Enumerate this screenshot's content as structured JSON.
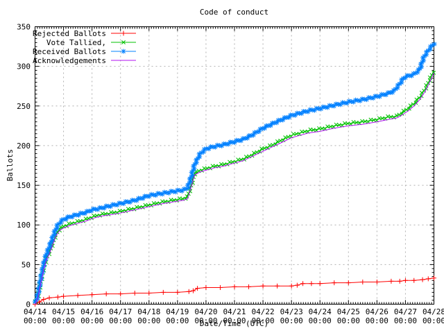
{
  "chart_data": {
    "type": "line",
    "title": "Code of conduct",
    "xlabel": "Date/Time (UTC)",
    "ylabel": "Ballots",
    "ylim": [
      0,
      350
    ],
    "ytick_step": 50,
    "ytick_minor_step": 5,
    "x_minor_ticks_per_day": 12,
    "x_days": 14,
    "x_tick_dates": [
      "04/14",
      "04/15",
      "04/16",
      "04/17",
      "04/18",
      "04/19",
      "04/20",
      "04/21",
      "04/22",
      "04/23",
      "04/24",
      "04/25",
      "04/26",
      "04/27",
      "04/28"
    ],
    "x_tick_time": "00:00",
    "grid": true,
    "legend_position": "top-left-inside",
    "colors": {
      "background": "#ffffff",
      "axis": "#000000",
      "grid": "#b0b0b0",
      "text": "#000000"
    },
    "series": [
      {
        "name": "Rejected Ballots",
        "color": "#ff0000",
        "marker": "plus",
        "points": [
          [
            0,
            0
          ],
          [
            0.15,
            3
          ],
          [
            0.3,
            6
          ],
          [
            0.5,
            8
          ],
          [
            0.8,
            9
          ],
          [
            1,
            10
          ],
          [
            1.5,
            11
          ],
          [
            2,
            12
          ],
          [
            2.5,
            13
          ],
          [
            3,
            13
          ],
          [
            3.5,
            14
          ],
          [
            4,
            14
          ],
          [
            4.5,
            15
          ],
          [
            5,
            15
          ],
          [
            5.4,
            16
          ],
          [
            5.55,
            17
          ],
          [
            5.7,
            20
          ],
          [
            6,
            21
          ],
          [
            6.5,
            21
          ],
          [
            7,
            22
          ],
          [
            7.5,
            22
          ],
          [
            8,
            23
          ],
          [
            8.5,
            23
          ],
          [
            9,
            23
          ],
          [
            9.2,
            24
          ],
          [
            9.4,
            26
          ],
          [
            9.7,
            26
          ],
          [
            10,
            26
          ],
          [
            10.5,
            27
          ],
          [
            11,
            27
          ],
          [
            11.5,
            28
          ],
          [
            12,
            28
          ],
          [
            12.5,
            29
          ],
          [
            12.8,
            29
          ],
          [
            13,
            30
          ],
          [
            13.3,
            30
          ],
          [
            13.6,
            31
          ],
          [
            13.8,
            32
          ],
          [
            14,
            33
          ]
        ]
      },
      {
        "name": "Vote Tallied,",
        "color": "#00c000",
        "marker": "cross",
        "points": [
          [
            0,
            0
          ],
          [
            0.1,
            10
          ],
          [
            0.2,
            28
          ],
          [
            0.3,
            45
          ],
          [
            0.4,
            58
          ],
          [
            0.5,
            65
          ],
          [
            0.6,
            75
          ],
          [
            0.7,
            85
          ],
          [
            0.8,
            92
          ],
          [
            0.9,
            96
          ],
          [
            1,
            98
          ],
          [
            1.2,
            101
          ],
          [
            1.5,
            104
          ],
          [
            1.8,
            107
          ],
          [
            2,
            110
          ],
          [
            2.3,
            113
          ],
          [
            2.5,
            114
          ],
          [
            3,
            117
          ],
          [
            3.5,
            121
          ],
          [
            4,
            125
          ],
          [
            4.5,
            129
          ],
          [
            5,
            132
          ],
          [
            5.2,
            133
          ],
          [
            5.35,
            135
          ],
          [
            5.5,
            152
          ],
          [
            5.6,
            165
          ],
          [
            5.8,
            169
          ],
          [
            6,
            171
          ],
          [
            6.3,
            174
          ],
          [
            6.6,
            176
          ],
          [
            7,
            180
          ],
          [
            7.3,
            183
          ],
          [
            7.6,
            188
          ],
          [
            8,
            196
          ],
          [
            8.3,
            200
          ],
          [
            8.6,
            206
          ],
          [
            9,
            213
          ],
          [
            9.3,
            216
          ],
          [
            9.6,
            219
          ],
          [
            10,
            221
          ],
          [
            10.5,
            225
          ],
          [
            11,
            228
          ],
          [
            11.5,
            230
          ],
          [
            12,
            233
          ],
          [
            12.4,
            236
          ],
          [
            12.7,
            237
          ],
          [
            12.9,
            242
          ],
          [
            13.1,
            247
          ],
          [
            13.3,
            253
          ],
          [
            13.5,
            261
          ],
          [
            13.7,
            272
          ],
          [
            13.85,
            283
          ],
          [
            14,
            295
          ]
        ]
      },
      {
        "name": "Received Ballots",
        "color": "#0080ff",
        "marker": "asterisk",
        "points": [
          [
            0,
            0
          ],
          [
            0.1,
            12
          ],
          [
            0.2,
            32
          ],
          [
            0.3,
            50
          ],
          [
            0.4,
            63
          ],
          [
            0.5,
            72
          ],
          [
            0.6,
            82
          ],
          [
            0.7,
            92
          ],
          [
            0.8,
            100
          ],
          [
            0.9,
            104
          ],
          [
            1,
            107
          ],
          [
            1.2,
            110
          ],
          [
            1.5,
            113
          ],
          [
            1.8,
            116
          ],
          [
            2,
            119
          ],
          [
            2.3,
            121
          ],
          [
            2.5,
            123
          ],
          [
            3,
            127
          ],
          [
            3.5,
            131
          ],
          [
            4,
            137
          ],
          [
            4.5,
            140
          ],
          [
            5,
            143
          ],
          [
            5.2,
            144
          ],
          [
            5.35,
            146
          ],
          [
            5.5,
            163
          ],
          [
            5.6,
            176
          ],
          [
            5.8,
            190
          ],
          [
            6,
            196
          ],
          [
            6.3,
            199
          ],
          [
            6.6,
            201
          ],
          [
            7,
            205
          ],
          [
            7.3,
            208
          ],
          [
            7.6,
            213
          ],
          [
            8,
            222
          ],
          [
            8.3,
            227
          ],
          [
            8.6,
            232
          ],
          [
            9,
            238
          ],
          [
            9.3,
            241
          ],
          [
            9.6,
            244
          ],
          [
            10,
            247
          ],
          [
            10.5,
            251
          ],
          [
            11,
            255
          ],
          [
            11.5,
            258
          ],
          [
            12,
            262
          ],
          [
            12.4,
            266
          ],
          [
            12.6,
            269
          ],
          [
            12.8,
            278
          ],
          [
            12.95,
            286
          ],
          [
            13.1,
            288
          ],
          [
            13.3,
            290
          ],
          [
            13.5,
            296
          ],
          [
            13.65,
            312
          ],
          [
            13.8,
            320
          ],
          [
            14,
            329
          ]
        ]
      },
      {
        "name": "Acknowledgements",
        "color": "#b010f0",
        "marker": "none",
        "points": [
          [
            0,
            0
          ],
          [
            0.1,
            8
          ],
          [
            0.2,
            26
          ],
          [
            0.3,
            43
          ],
          [
            0.4,
            56
          ],
          [
            0.5,
            63
          ],
          [
            0.6,
            73
          ],
          [
            0.7,
            83
          ],
          [
            0.8,
            90
          ],
          [
            0.9,
            94
          ],
          [
            1,
            96
          ],
          [
            1.2,
            99
          ],
          [
            1.5,
            102
          ],
          [
            1.8,
            105
          ],
          [
            2,
            108
          ],
          [
            2.3,
            111
          ],
          [
            2.5,
            112
          ],
          [
            3,
            115
          ],
          [
            3.5,
            119
          ],
          [
            4,
            123
          ],
          [
            4.5,
            127
          ],
          [
            5,
            130
          ],
          [
            5.2,
            131
          ],
          [
            5.35,
            133
          ],
          [
            5.5,
            150
          ],
          [
            5.6,
            163
          ],
          [
            5.8,
            167
          ],
          [
            6,
            169
          ],
          [
            6.3,
            172
          ],
          [
            6.6,
            174
          ],
          [
            7,
            178
          ],
          [
            7.3,
            181
          ],
          [
            7.6,
            186
          ],
          [
            8,
            193
          ],
          [
            8.3,
            198
          ],
          [
            8.6,
            203
          ],
          [
            9,
            210
          ],
          [
            9.3,
            213
          ],
          [
            9.6,
            216
          ],
          [
            10,
            218
          ],
          [
            10.5,
            222
          ],
          [
            11,
            225
          ],
          [
            11.5,
            227
          ],
          [
            12,
            230
          ],
          [
            12.4,
            233
          ],
          [
            12.7,
            235
          ],
          [
            12.9,
            239
          ],
          [
            13.1,
            244
          ],
          [
            13.3,
            250
          ],
          [
            13.5,
            258
          ],
          [
            13.7,
            269
          ],
          [
            13.85,
            280
          ],
          [
            14,
            292
          ]
        ]
      }
    ]
  }
}
